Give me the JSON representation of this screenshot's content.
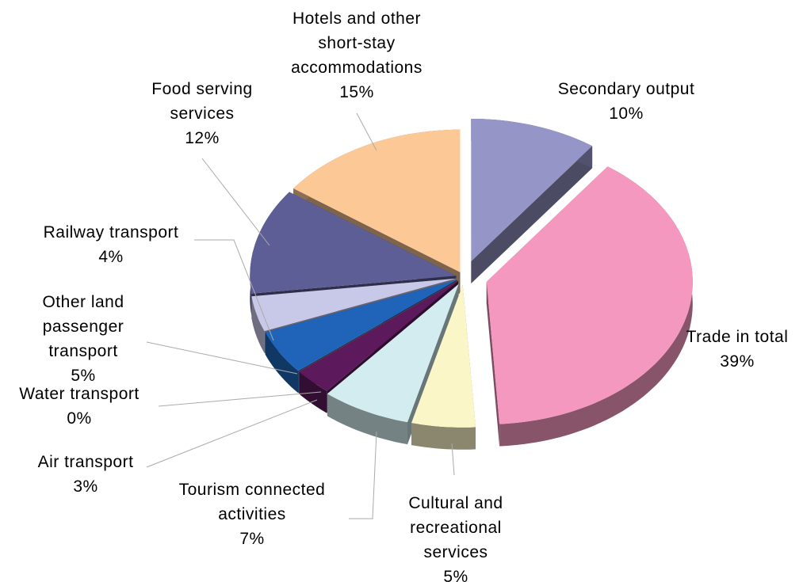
{
  "chart_data": {
    "type": "pie3d",
    "categories": [
      "Secondary output",
      "Trade in total",
      "Cultural and recreational services",
      "Tourism connected activities",
      "Air transport",
      "Water transport",
      "Other land passenger transport",
      "Railway transport",
      "Food serving services",
      "Hotels and other short-stay accommodations"
    ],
    "values": [
      10,
      39,
      5,
      7,
      3,
      0,
      5,
      4,
      12,
      15
    ],
    "value_labels": [
      "10%",
      "39%",
      "5%",
      "7%",
      "3%",
      "0%",
      "5%",
      "4%",
      "12%",
      "15%"
    ],
    "colors": [
      "#9595c8",
      "#f598c0",
      "#fbf6c8",
      "#d2ecf0",
      "#5c1a5c",
      "#e08080",
      "#1f64b8",
      "#c8c8e8",
      "#5e5e96",
      "#fcc896"
    ]
  }
}
